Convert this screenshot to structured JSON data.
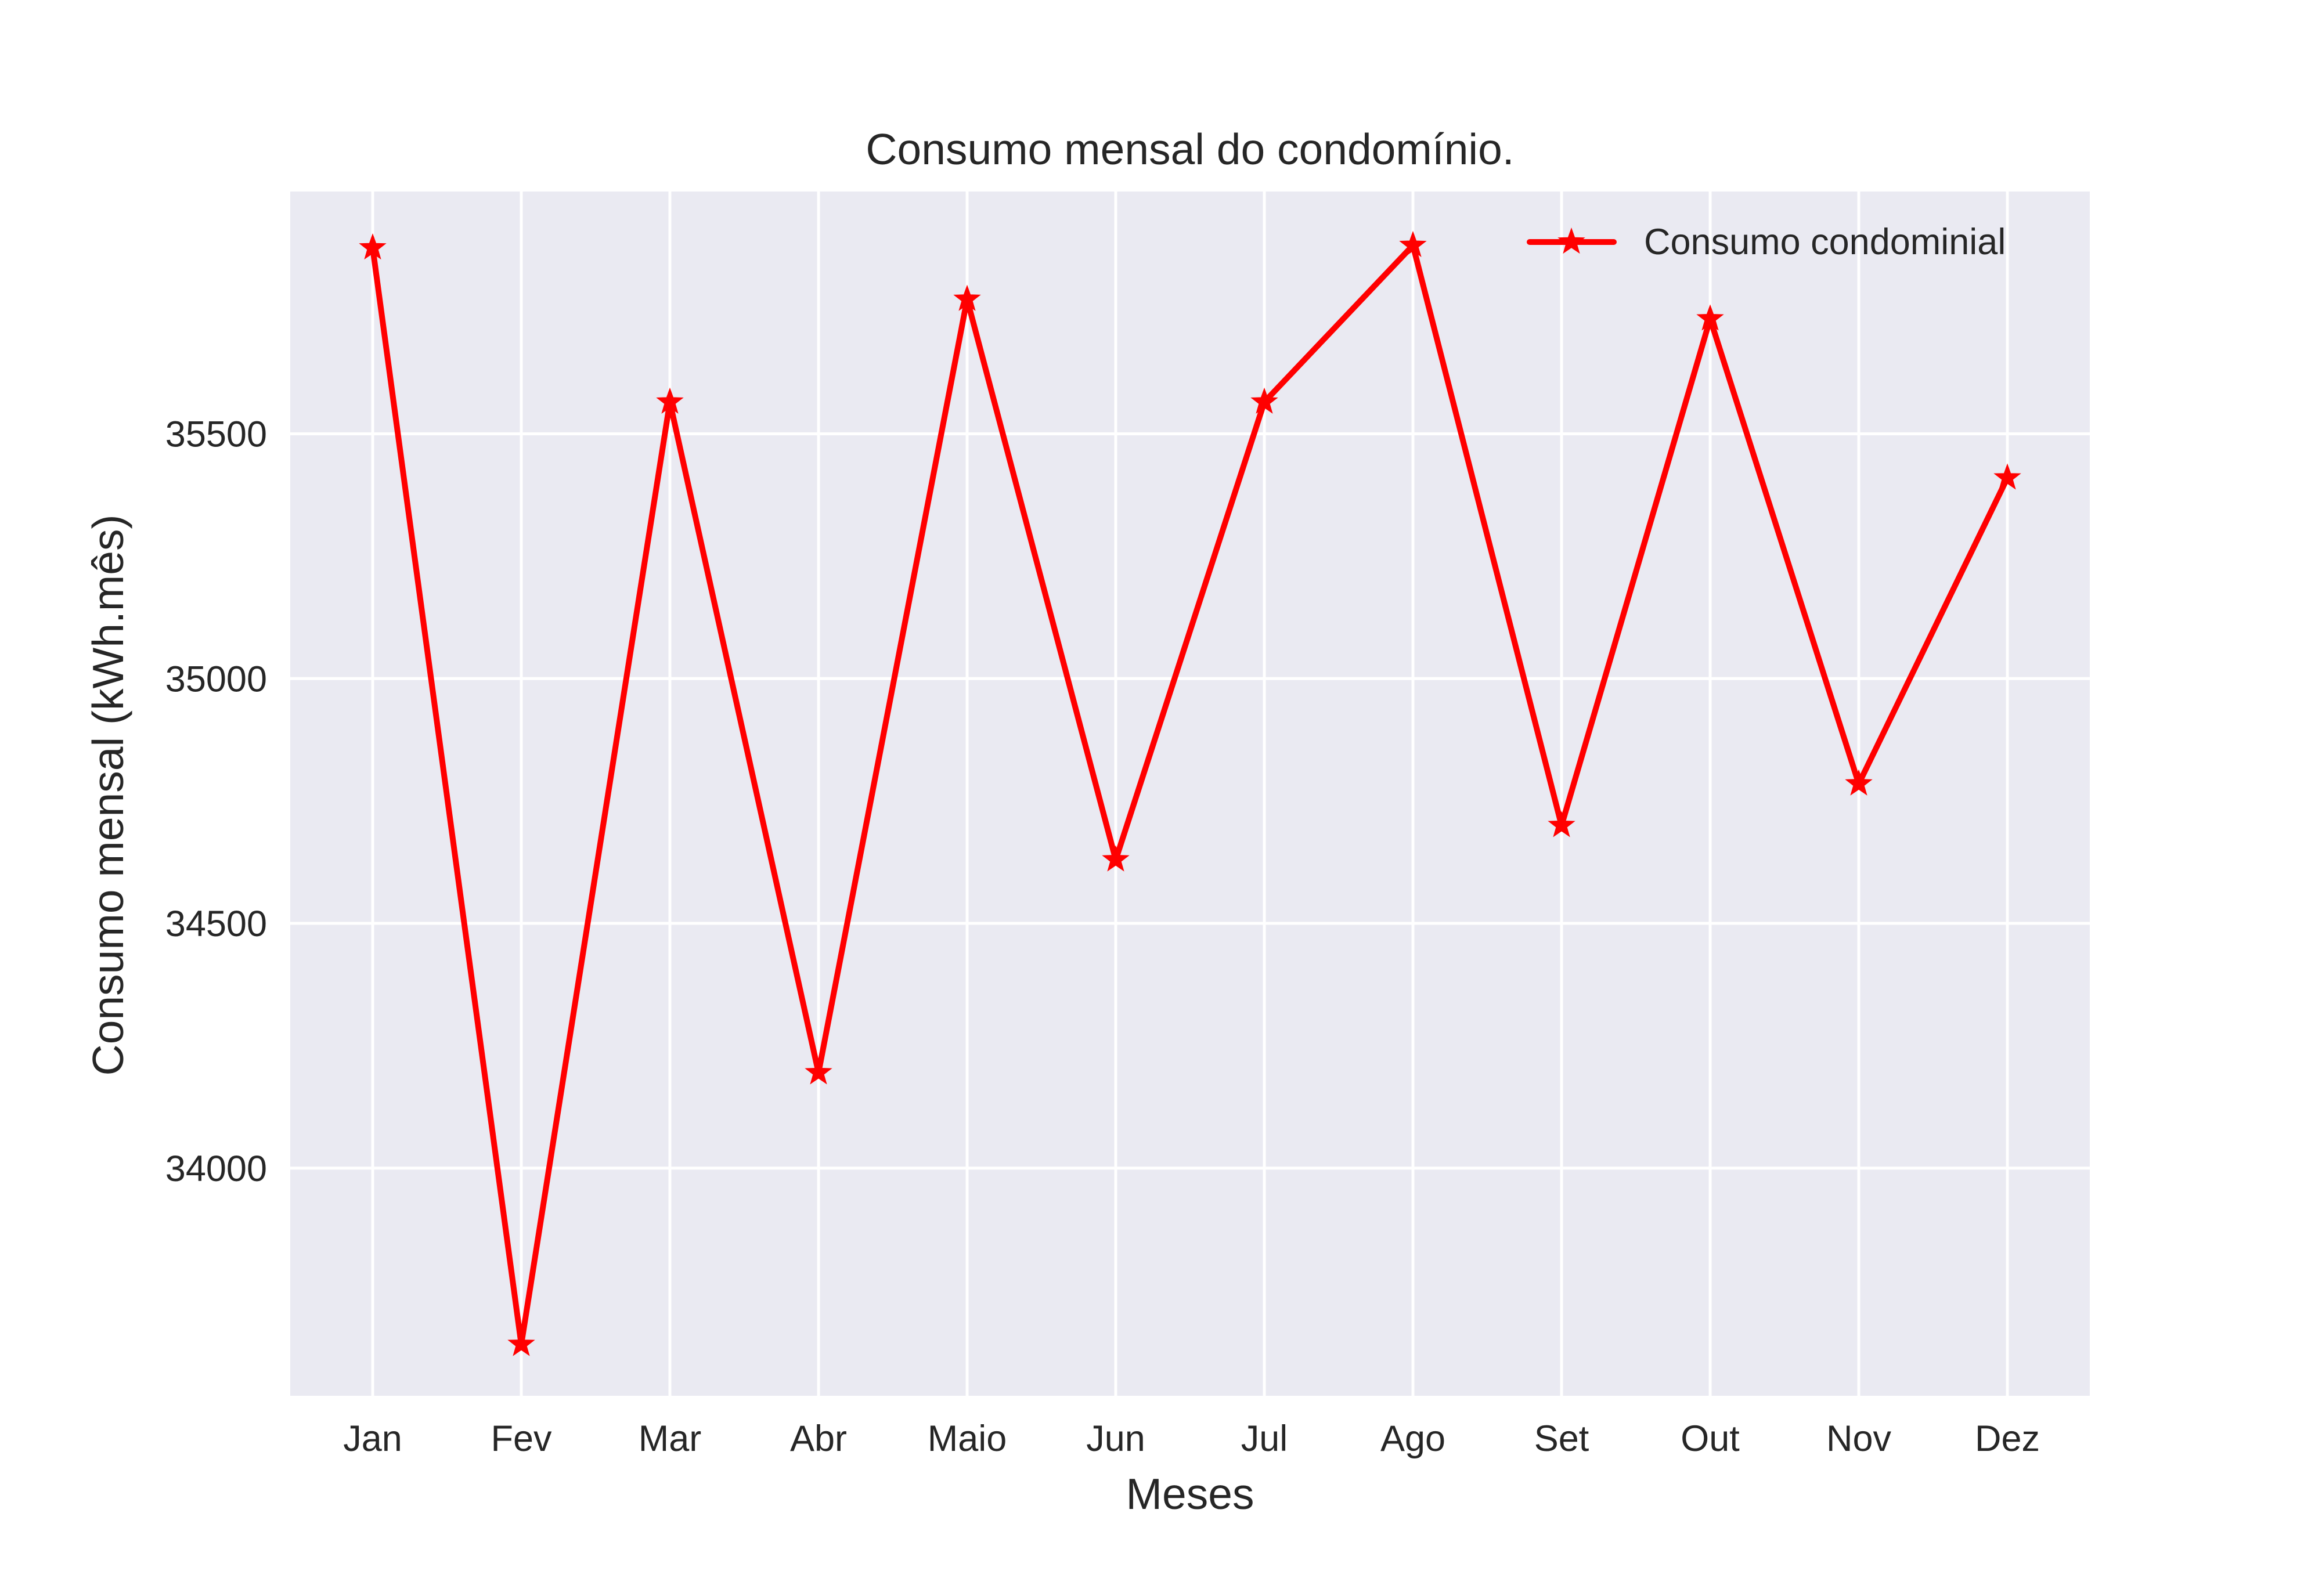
{
  "chart_data": {
    "type": "line",
    "title": "Consumo mensal do condomínio.",
    "xlabel": "Meses",
    "ylabel": "Consumo mensal (kWh.mês)",
    "categories": [
      "Jan",
      "Fev",
      "Mar",
      "Abr",
      "Maio",
      "Jun",
      "Jul",
      "Ago",
      "Set",
      "Out",
      "Nov",
      "Dez"
    ],
    "series": [
      {
        "name": "Consumo condominial",
        "color": "#ff0000",
        "marker": "star",
        "values": [
          35880,
          33640,
          35565,
          34195,
          35775,
          34630,
          35565,
          35885,
          34700,
          35735,
          34785,
          35410
        ]
      }
    ],
    "yticks": [
      34000,
      34500,
      35000,
      35500
    ],
    "ylim": [
      33535,
      35995
    ],
    "grid": true,
    "legend": "top-right",
    "background_color": "#eaeaf2"
  }
}
